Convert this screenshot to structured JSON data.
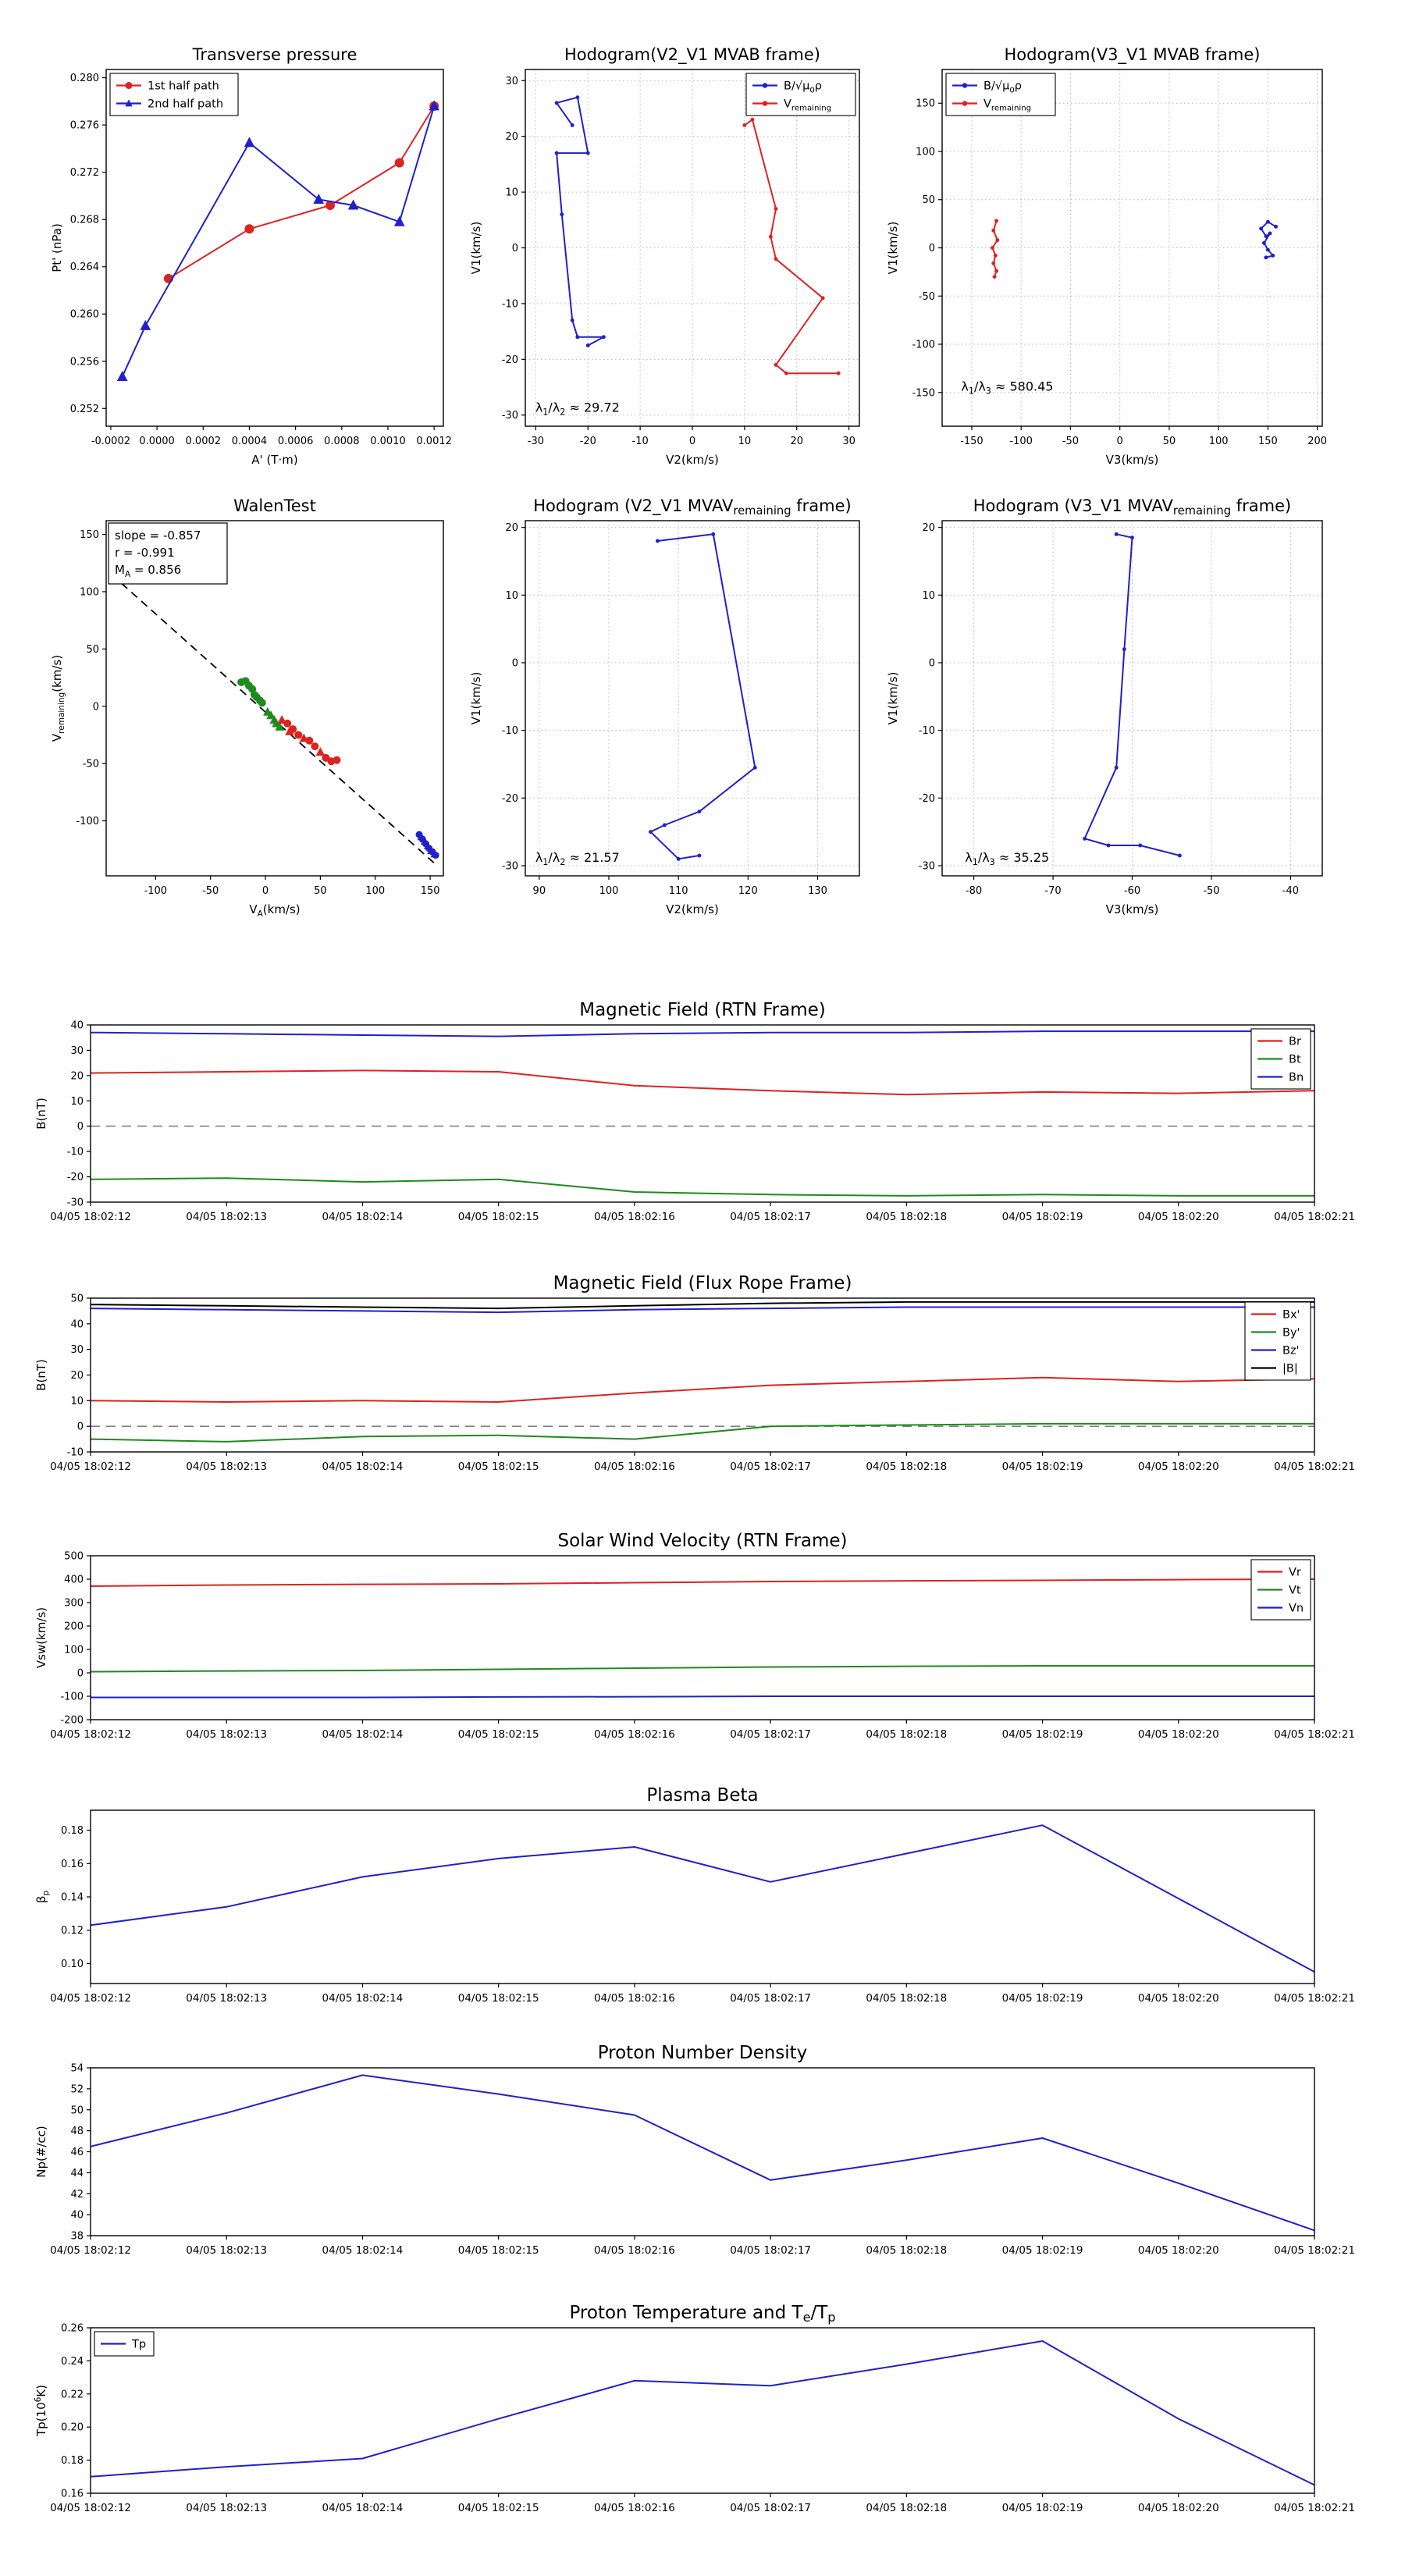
{
  "colors": {
    "red": "#dd2222",
    "green": "#1e8b1e",
    "blue": "#2020cc",
    "black": "#000000",
    "grey": "#808080",
    "grid": "#b8b8b8",
    "background": "#ffffff"
  },
  "time_axis": {
    "labels": [
      "04/05 18:02:12",
      "04/05 18:02:13",
      "04/05 18:02:14",
      "04/05 18:02:15",
      "04/05 18:02:16",
      "04/05 18:02:17",
      "04/05 18:02:18",
      "04/05 18:02:19",
      "04/05 18:02:20",
      "04/05 18:02:21"
    ]
  },
  "chart_data": [
    {
      "id": "transverse-pressure",
      "type": "line",
      "title": "Transverse pressure",
      "xlabel": "A' (T·m)",
      "ylabel": "Pt' (nPa)",
      "xlim": [
        -0.00022,
        0.00124
      ],
      "ylim": [
        0.2505,
        0.2807
      ],
      "xticks": [
        -0.0002,
        0,
        0.0002,
        0.0004,
        0.0006,
        0.0008,
        0.001,
        0.0012
      ],
      "xtick_labels": [
        "-0.0002",
        "0.0000",
        "0.0002",
        "0.0004",
        "0.0006",
        "0.0008",
        "0.0010",
        "0.0012"
      ],
      "yticks": [
        0.252,
        0.256,
        0.26,
        0.264,
        0.268,
        0.272,
        0.276,
        0.28
      ],
      "ytick_labels": [
        "0.252",
        "0.256",
        "0.260",
        "0.264",
        "0.268",
        "0.272",
        "0.276",
        "0.280"
      ],
      "grid": false,
      "legend": {
        "loc": "upper-left",
        "entries": [
          {
            "label": "1st half path",
            "color": "red",
            "marker": "circle"
          },
          {
            "label": "2nd half path",
            "color": "blue",
            "marker": "triangle"
          }
        ]
      },
      "series": [
        {
          "name": "1st-half-path",
          "color": "red",
          "marker": "circle",
          "msize": 6,
          "x": [
            5e-05,
            0.0004,
            0.00075,
            0.00105,
            0.0012
          ],
          "y": [
            0.263,
            0.2672,
            0.2692,
            0.2728,
            0.2776
          ]
        },
        {
          "name": "2nd-half-path",
          "color": "blue",
          "marker": "triangle",
          "msize": 6.5,
          "x": [
            -0.00015,
            -5e-05,
            0.0004,
            0.0007,
            0.00085,
            0.00105,
            0.0012
          ],
          "y": [
            0.2547,
            0.259,
            0.2745,
            0.2697,
            0.2692,
            0.2678,
            0.2776
          ]
        }
      ]
    },
    {
      "id": "hodogram-v2v1-mvab",
      "type": "line",
      "title": "Hodogram(V2_V1 MVAB frame)",
      "xlabel": "V2(km/s)",
      "ylabel": "V1(km/s)",
      "xlim": [
        -32,
        32
      ],
      "ylim": [
        -32,
        32
      ],
      "xticks": [
        -30,
        -20,
        -10,
        0,
        10,
        20,
        30
      ],
      "yticks": [
        -30,
        -20,
        -10,
        0,
        10,
        20,
        30
      ],
      "grid": true,
      "legend": {
        "loc": "upper-right",
        "entries": [
          {
            "label": "B/√μ_{0}ρ",
            "color": "blue",
            "marker": "dot"
          },
          {
            "label": "V_{remaining}",
            "color": "red",
            "marker": "dot"
          }
        ]
      },
      "annotations": [
        {
          "text": "λ_{1}/λ_{2} ≈ 29.72",
          "fx": 0.03,
          "fy": 0.96
        }
      ],
      "series": [
        {
          "name": "B-over-sqrt-mu0rho",
          "color": "blue",
          "marker": "dot",
          "msize": 3.4,
          "x": [
            -23,
            -26,
            -22,
            -20,
            -26,
            -25,
            -23,
            -22,
            -17,
            -20
          ],
          "y": [
            22,
            26,
            27,
            17,
            17,
            6,
            -13,
            -16,
            -16,
            -17.5
          ]
        },
        {
          "name": "V-remaining",
          "color": "red",
          "marker": "dot",
          "msize": 3.4,
          "x": [
            10,
            11.5,
            16,
            15,
            16,
            25,
            16,
            18,
            28
          ],
          "y": [
            22,
            23,
            7,
            2,
            -2,
            -9,
            -21,
            -22.5,
            -22.5
          ]
        }
      ]
    },
    {
      "id": "hodogram-v3v1-mvab",
      "type": "line",
      "title": "Hodogram(V3_V1 MVAB frame)",
      "xlabel": "V3(km/s)",
      "ylabel": "V1(km/s)",
      "xlim": [
        -180,
        205
      ],
      "ylim": [
        -185,
        185
      ],
      "xticks": [
        -150,
        -100,
        -50,
        0,
        50,
        100,
        150,
        200
      ],
      "yticks": [
        -150,
        -100,
        -50,
        0,
        50,
        100,
        150
      ],
      "grid": true,
      "legend": {
        "loc": "upper-left",
        "entries": [
          {
            "label": "B/√μ_{0}ρ",
            "color": "blue",
            "marker": "dot"
          },
          {
            "label": "V_{remaining}",
            "color": "red",
            "marker": "dot"
          }
        ]
      },
      "annotations": [
        {
          "text": "λ_{1}/λ_{3} ≈ 580.45",
          "fx": 0.05,
          "fy": 0.9
        }
      ],
      "series": [
        {
          "name": "B-over-sqrt-mu0rho",
          "color": "blue",
          "marker": "dot",
          "msize": 3.4,
          "x": [
            158,
            150,
            143,
            148,
            152,
            146,
            150,
            155,
            148
          ],
          "y": [
            22,
            27,
            20,
            12,
            15,
            5,
            -2,
            -8,
            -10
          ]
        },
        {
          "name": "V-remaining",
          "color": "red",
          "marker": "dot",
          "msize": 3.4,
          "x": [
            -125,
            -128,
            -124,
            -129,
            -126,
            -128,
            -125,
            -127
          ],
          "y": [
            28,
            18,
            8,
            0,
            -8,
            -16,
            -24,
            -30
          ]
        }
      ]
    },
    {
      "id": "walen-test",
      "type": "scatter",
      "title": "WalenTest",
      "xlabel": "V_{A}(km/s)",
      "ylabel": "V_{remaining}(km/s)",
      "xlim": [
        -145,
        162
      ],
      "ylim": [
        -148,
        162
      ],
      "xticks": [
        -100,
        -50,
        0,
        50,
        100,
        150
      ],
      "yticks": [
        -100,
        -50,
        0,
        50,
        100,
        150
      ],
      "grid": false,
      "stat_box": {
        "lines": [
          "slope = -0.857",
          "r = -0.991",
          "M_{A} = 0.856"
        ]
      },
      "series": [
        {
          "name": "fit-line",
          "color": "black",
          "marker": "none",
          "dash": true,
          "width": 1.8,
          "x": [
            -140,
            155
          ],
          "y": [
            115,
            -138
          ]
        },
        {
          "name": "green-circles",
          "color": "green",
          "marker": "circle",
          "line": false,
          "msize": 5,
          "x": [
            -22,
            -18,
            -15,
            -12,
            -10,
            -8,
            -5,
            -3
          ],
          "y": [
            21,
            22,
            18,
            15,
            10,
            8,
            5,
            3
          ]
        },
        {
          "name": "green-triangles",
          "color": "green",
          "marker": "triangle",
          "line": false,
          "msize": 5.5,
          "x": [
            2,
            5,
            8,
            10,
            13
          ],
          "y": [
            -5,
            -8,
            -12,
            -15,
            -18
          ]
        },
        {
          "name": "red-circles",
          "color": "red",
          "marker": "circle",
          "line": false,
          "msize": 5,
          "x": [
            20,
            25,
            30,
            40,
            45,
            55,
            60,
            65
          ],
          "y": [
            -15,
            -20,
            -25,
            -30,
            -35,
            -45,
            -48,
            -47
          ]
        },
        {
          "name": "red-triangles",
          "color": "red",
          "marker": "triangle",
          "line": false,
          "msize": 5.5,
          "x": [
            15,
            22,
            35,
            50
          ],
          "y": [
            -12,
            -22,
            -28,
            -40
          ]
        },
        {
          "name": "blue-circles",
          "color": "blue",
          "marker": "circle",
          "line": false,
          "msize": 4.5,
          "x": [
            140,
            143,
            146,
            149,
            152,
            155
          ],
          "y": [
            -112,
            -116,
            -120,
            -124,
            -127,
            -130
          ]
        },
        {
          "name": "blue-triangles",
          "color": "blue",
          "marker": "triangle",
          "line": false,
          "msize": 5,
          "x": [
            142,
            145,
            148,
            151,
            154
          ],
          "y": [
            -114,
            -118,
            -122,
            -126,
            -129
          ]
        }
      ]
    },
    {
      "id": "hodogram-v2v1-mvav",
      "type": "line",
      "title": "Hodogram (V2_V1 MVAV_{remaining} frame)",
      "xlabel": "V2(km/s)",
      "ylabel": "V1(km/s)",
      "xlim": [
        88,
        136
      ],
      "ylim": [
        -31.5,
        21
      ],
      "xticks": [
        90,
        100,
        110,
        120,
        130
      ],
      "yticks": [
        -30,
        -20,
        -10,
        0,
        10,
        20
      ],
      "grid": true,
      "annotations": [
        {
          "text": "λ_{1}/λ_{2} ≈ 21.57",
          "fx": 0.03,
          "fy": 0.96
        }
      ],
      "series": [
        {
          "name": "hodogram-line",
          "color": "blue",
          "marker": "dot",
          "msize": 3.4,
          "x": [
            107,
            115,
            121,
            113,
            108,
            106,
            110,
            113
          ],
          "y": [
            18,
            19,
            -15.5,
            -22,
            -24,
            -25,
            -29,
            -28.5
          ]
        }
      ]
    },
    {
      "id": "hodogram-v3v1-mvav",
      "type": "line",
      "title": "Hodogram (V3_V1 MVAV_{remaining} frame)",
      "xlabel": "V3(km/s)",
      "ylabel": "V1(km/s)",
      "xlim": [
        -84,
        -36
      ],
      "ylim": [
        -31.5,
        21
      ],
      "xticks": [
        -80,
        -70,
        -60,
        -50,
        -40
      ],
      "yticks": [
        -30,
        -20,
        -10,
        0,
        10,
        20
      ],
      "grid": true,
      "annotations": [
        {
          "text": "λ_{1}/λ_{3} ≈ 35.25",
          "fx": 0.06,
          "fy": 0.96
        }
      ],
      "series": [
        {
          "name": "hodogram-line",
          "color": "blue",
          "marker": "dot",
          "msize": 3.4,
          "x": [
            -62,
            -60,
            -61,
            -62,
            -66,
            -63,
            -59,
            -54
          ],
          "y": [
            19,
            18.5,
            2,
            -15.5,
            -26,
            -27,
            -27,
            -28.5
          ]
        }
      ]
    },
    {
      "id": "mag-rtn",
      "type": "line",
      "title": "Magnetic Field (RTN Frame)",
      "ylabel": "B(nT)",
      "xlim": [
        0,
        9
      ],
      "ylim": [
        -30,
        40
      ],
      "yticks": [
        -30,
        -20,
        -10,
        0,
        10,
        20,
        30,
        40
      ],
      "xticklabels": "time",
      "hlines": [
        {
          "y": 0
        }
      ],
      "legend": {
        "loc": "upper-right",
        "entries": [
          {
            "label": "Br",
            "color": "red"
          },
          {
            "label": "Bt",
            "color": "green"
          },
          {
            "label": "Bn",
            "color": "blue"
          }
        ]
      },
      "series": [
        {
          "name": "Br",
          "color": "red",
          "y": [
            21,
            21.5,
            22,
            21.5,
            16,
            14,
            12.5,
            13.5,
            13,
            14
          ]
        },
        {
          "name": "Bt",
          "color": "green",
          "y": [
            -21,
            -20.5,
            -22,
            -21,
            -26,
            -27,
            -27.5,
            -27,
            -27.5,
            -27.5
          ]
        },
        {
          "name": "Bn",
          "color": "blue",
          "y": [
            37,
            36.5,
            36,
            35.5,
            36.5,
            37,
            37,
            37.5,
            37.5,
            37.5
          ]
        }
      ]
    },
    {
      "id": "mag-fluxrope",
      "type": "line",
      "title": "Magnetic Field (Flux Rope Frame)",
      "ylabel": "B(nT)",
      "xlim": [
        0,
        9
      ],
      "ylim": [
        -10,
        50
      ],
      "yticks": [
        -10,
        0,
        10,
        20,
        30,
        40,
        50
      ],
      "xticklabels": "time",
      "hlines": [
        {
          "y": 0
        }
      ],
      "legend": {
        "loc": "upper-right",
        "entries": [
          {
            "label": "Bx'",
            "color": "red"
          },
          {
            "label": "By'",
            "color": "green"
          },
          {
            "label": "Bz'",
            "color": "blue"
          },
          {
            "label": "|B|",
            "color": "black"
          }
        ]
      },
      "series": [
        {
          "name": "Bx",
          "color": "red",
          "y": [
            10,
            9.5,
            10,
            9.5,
            13,
            16,
            17.5,
            19,
            17.5,
            18.5
          ]
        },
        {
          "name": "By",
          "color": "green",
          "y": [
            -5,
            -6,
            -4,
            -3.5,
            -5,
            0,
            0.5,
            1,
            1,
            1
          ]
        },
        {
          "name": "Bz",
          "color": "blue",
          "y": [
            46,
            45.5,
            45,
            44.5,
            45.5,
            46,
            46.5,
            46.5,
            46.5,
            46.5
          ]
        },
        {
          "name": "Bmag",
          "color": "black",
          "y": [
            47.5,
            47,
            46.5,
            46,
            47,
            48,
            48.5,
            48.5,
            48.5,
            48.5
          ]
        }
      ]
    },
    {
      "id": "vsw-rtn",
      "type": "line",
      "title": "Solar Wind Velocity (RTN Frame)",
      "ylabel": "Vsw(km/s)",
      "xlim": [
        0,
        9
      ],
      "ylim": [
        -200,
        500
      ],
      "yticks": [
        -200,
        -100,
        0,
        100,
        200,
        300,
        400,
        500
      ],
      "xticklabels": "time",
      "legend": {
        "loc": "upper-right",
        "entries": [
          {
            "label": "Vr",
            "color": "red"
          },
          {
            "label": "Vt",
            "color": "green"
          },
          {
            "label": "Vn",
            "color": "blue"
          }
        ]
      },
      "series": [
        {
          "name": "Vr",
          "color": "red",
          "y": [
            370,
            375,
            378,
            380,
            385,
            390,
            393,
            395,
            398,
            400
          ]
        },
        {
          "name": "Vt",
          "color": "green",
          "y": [
            5,
            8,
            10,
            15,
            20,
            25,
            28,
            30,
            30,
            30
          ]
        },
        {
          "name": "Vn",
          "color": "blue",
          "y": [
            -105,
            -105,
            -105,
            -103,
            -102,
            -100,
            -100,
            -100,
            -100,
            -100
          ]
        }
      ]
    },
    {
      "id": "plasma-beta",
      "type": "line",
      "title": "Plasma Beta",
      "ylabel": "β_{p}",
      "xlim": [
        0,
        9
      ],
      "ylim": [
        0.088,
        0.192
      ],
      "yticks": [
        0.1,
        0.12,
        0.14,
        0.16,
        0.18
      ],
      "ytick_labels": [
        "0.10",
        "0.12",
        "0.14",
        "0.16",
        "0.18"
      ],
      "xticklabels": "time",
      "series": [
        {
          "name": "beta-p",
          "color": "blue",
          "y": [
            0.123,
            0.134,
            0.152,
            0.163,
            0.17,
            0.149,
            0.166,
            0.183,
            0.139,
            0.095
          ]
        }
      ]
    },
    {
      "id": "proton-density",
      "type": "line",
      "title": "Proton Number Density",
      "ylabel": "Np(#/cc)",
      "xlim": [
        0,
        9
      ],
      "ylim": [
        38,
        54
      ],
      "yticks": [
        38,
        40,
        42,
        44,
        46,
        48,
        50,
        52,
        54
      ],
      "xticklabels": "time",
      "series": [
        {
          "name": "Np",
          "color": "blue",
          "y": [
            46.5,
            49.7,
            53.3,
            51.5,
            49.5,
            43.3,
            45.2,
            47.3,
            43.0,
            38.5
          ]
        }
      ]
    },
    {
      "id": "proton-temp",
      "type": "line",
      "title": "Proton Temperature and T_{e}/T_{p}",
      "ylabel": "Tp(10^{6}K)",
      "xlim": [
        0,
        9
      ],
      "ylim": [
        0.16,
        0.26
      ],
      "yticks": [
        0.16,
        0.18,
        0.2,
        0.22,
        0.24,
        0.26
      ],
      "ytick_labels": [
        "0.16",
        "0.18",
        "0.20",
        "0.22",
        "0.24",
        "0.26"
      ],
      "xticklabels": "time",
      "legend": {
        "loc": "upper-left",
        "entries": [
          {
            "label": "Tp",
            "color": "blue"
          }
        ]
      },
      "series": [
        {
          "name": "Tp",
          "color": "blue",
          "y": [
            0.17,
            0.176,
            0.181,
            0.205,
            0.228,
            0.225,
            0.238,
            0.252,
            0.205,
            0.165
          ]
        }
      ]
    }
  ]
}
